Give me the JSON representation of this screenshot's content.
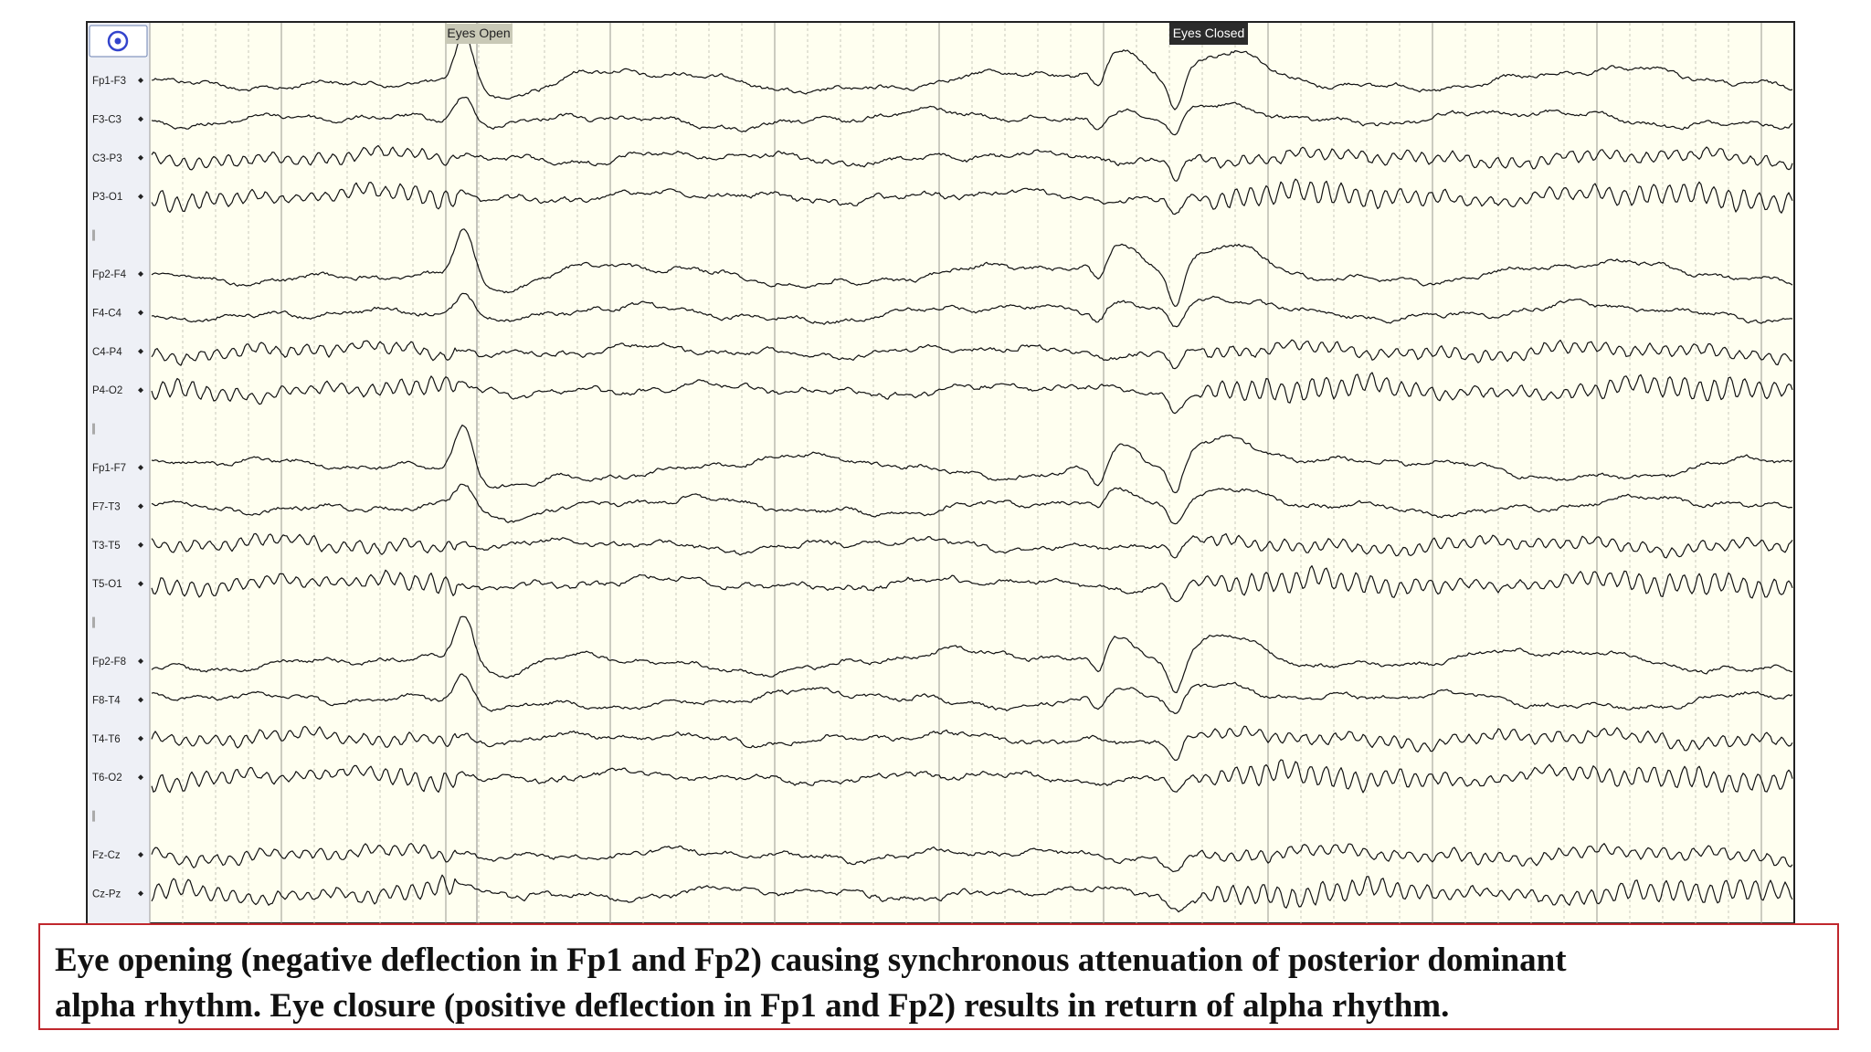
{
  "channels": [
    "Fp1-F3",
    "F3-C3",
    "C3-P3",
    "P3-O1",
    "Fp2-F4",
    "F4-C4",
    "C4-P4",
    "P4-O2",
    "Fp1-F7",
    "F7-T3",
    "T3-T5",
    "T5-O1",
    "Fp2-F8",
    "F8-T4",
    "T4-T6",
    "T6-O2",
    "Fz-Cz",
    "Cz-Pz"
  ],
  "events": [
    {
      "label": "Eyes Open"
    },
    {
      "label": "Eyes Closed"
    }
  ],
  "caption": {
    "lines": [
      "Eye opening (negative deflection in Fp1 and Fp2) causing synchronous attenuation of posterior dominant",
      "alpha rhythm. Eye closure (positive deflection in Fp1 and Fp2) results in return of alpha rhythm."
    ]
  }
}
